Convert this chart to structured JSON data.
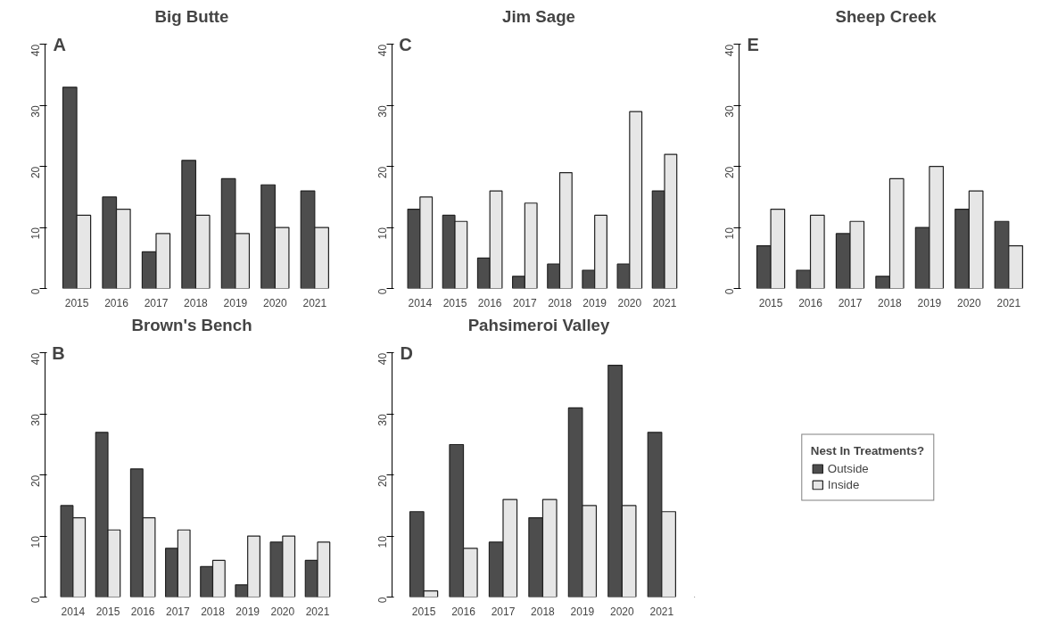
{
  "chart_data": [
    {
      "type": "bar",
      "title": "Big Butte",
      "annotations": [
        "A"
      ],
      "categories": [
        "2015",
        "2016",
        "2017",
        "2018",
        "2019",
        "2020",
        "2021"
      ],
      "ylim": [
        0,
        40
      ],
      "yticks": [
        0,
        10,
        20,
        30,
        40
      ],
      "grid": false,
      "series": [
        {
          "color": "#4d4d4d",
          "values": [
            33,
            15,
            6,
            21,
            18,
            17,
            16
          ]
        },
        {
          "color": "#e6e6e6",
          "values": [
            12,
            13,
            9,
            12,
            9,
            10,
            10
          ]
        }
      ]
    },
    {
      "type": "bar",
      "title": "Jim Sage",
      "annotations": [
        "C"
      ],
      "categories": [
        "2014",
        "2015",
        "2016",
        "2017",
        "2018",
        "2019",
        "2020",
        "2021"
      ],
      "ylim": [
        0,
        40
      ],
      "yticks": [
        0,
        10,
        20,
        30,
        40
      ],
      "grid": false,
      "series": [
        {
          "color": "#4d4d4d",
          "values": [
            13,
            12,
            5,
            2,
            4,
            3,
            4,
            16
          ]
        },
        {
          "color": "#e6e6e6",
          "values": [
            15,
            11,
            16,
            14,
            19,
            12,
            29,
            22
          ]
        }
      ]
    },
    {
      "type": "bar",
      "title": "Sheep Creek",
      "annotations": [
        "E"
      ],
      "categories": [
        "2015",
        "2016",
        "2017",
        "2018",
        "2019",
        "2020",
        "2021"
      ],
      "ylim": [
        0,
        40
      ],
      "yticks": [
        0,
        10,
        20,
        30,
        40
      ],
      "grid": false,
      "series": [
        {
          "color": "#4d4d4d",
          "values": [
            7,
            3,
            9,
            2,
            10,
            13,
            11
          ]
        },
        {
          "color": "#e6e6e6",
          "values": [
            13,
            12,
            11,
            18,
            20,
            16,
            7
          ]
        }
      ]
    },
    {
      "type": "bar",
      "title": "Brown's Bench",
      "annotations": [
        "B"
      ],
      "categories": [
        "2014",
        "2015",
        "2016",
        "2017",
        "2018",
        "2019",
        "2020",
        "2021"
      ],
      "ylim": [
        0,
        40
      ],
      "yticks": [
        0,
        10,
        20,
        30,
        40
      ],
      "grid": false,
      "series": [
        {
          "color": "#4d4d4d",
          "values": [
            15,
            27,
            21,
            8,
            5,
            2,
            9,
            6
          ]
        },
        {
          "color": "#e6e6e6",
          "values": [
            13,
            11,
            13,
            11,
            6,
            10,
            10,
            9
          ]
        }
      ]
    },
    {
      "type": "bar",
      "title": "Pahsimeroi Valley",
      "annotations": [
        "D"
      ],
      "categories": [
        "2015",
        "2016",
        "2017",
        "2018",
        "2019",
        "2020",
        "2021"
      ],
      "ylim": [
        0,
        40
      ],
      "yticks": [
        0,
        10,
        20,
        30,
        40
      ],
      "grid": false,
      "legend": "right",
      "legend_title": "Nest In Treatments?",
      "series": [
        {
          "name": "Outside",
          "color": "#4d4d4d",
          "values": [
            14,
            25,
            9,
            13,
            31,
            38,
            27
          ]
        },
        {
          "name": "Inside",
          "color": "#e6e6e6",
          "values": [
            1,
            8,
            16,
            16,
            15,
            15,
            14
          ]
        }
      ]
    }
  ]
}
